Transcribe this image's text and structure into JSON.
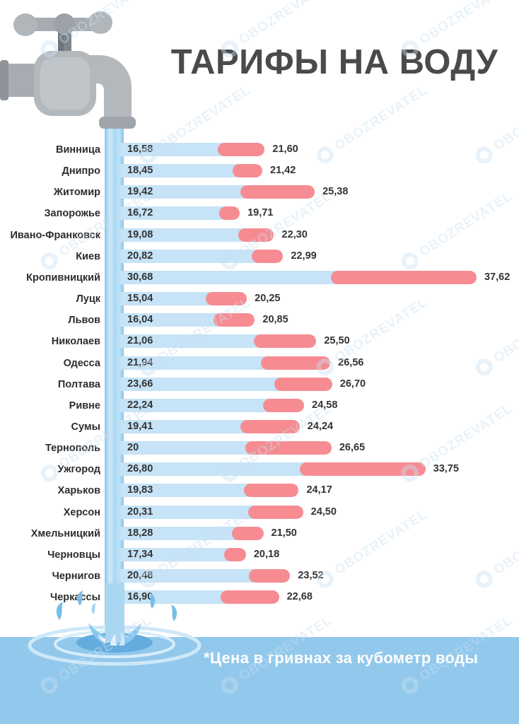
{
  "title": "ТАРИФЫ НА ВОДУ",
  "footnote": "*Цена в гривнах за кубометр воды",
  "watermark_text": "OBOZREVATEL",
  "colors": {
    "title_text": "#4a4a4a",
    "bar_blue": "#c6e3f7",
    "bar_pink": "#f68c92",
    "stream_blue": "#a9d7f2",
    "footer_band": "#92c8eb",
    "footnote_text": "#ffffff",
    "value_text": "#333333"
  },
  "chart_data": {
    "type": "bar",
    "orientation": "horizontal",
    "title": "ТАРИФЫ НА ВОДУ",
    "note": "*Цена в гривнах за кубометр воды",
    "legend": false,
    "grid": false,
    "categories": [
      "Винница",
      "Днипро",
      "Житомир",
      "Запорожье",
      "Ивано-Франковск",
      "Киев",
      "Кропивницкий",
      "Луцк",
      "Львов",
      "Николаев",
      "Одесса",
      "Полтава",
      "Ривне",
      "Сумы",
      "Тернополь",
      "Ужгород",
      "Харьков",
      "Херсон",
      "Хмельницкий",
      "Черновцы",
      "Чернигов",
      "Черкассы"
    ],
    "series": [
      {
        "name": "tariff_start_blue",
        "values": [
          16.58,
          18.45,
          19.42,
          16.72,
          19.08,
          20.82,
          30.68,
          15.04,
          16.04,
          21.06,
          21.94,
          23.66,
          22.24,
          19.41,
          20,
          26.8,
          19.83,
          20.31,
          18.28,
          17.34,
          20.48,
          16.9
        ]
      },
      {
        "name": "tariff_new_pink",
        "values": [
          21.6,
          21.42,
          25.38,
          19.71,
          22.3,
          22.99,
          37.62,
          20.25,
          20.85,
          25.5,
          26.56,
          26.7,
          24.58,
          24.24,
          26.65,
          33.75,
          24.17,
          24.5,
          21.5,
          20.18,
          23.52,
          22.68
        ]
      }
    ],
    "display_labels": [
      [
        "16,58",
        "21,60"
      ],
      [
        "18,45",
        "21,42"
      ],
      [
        "19,42",
        "25,38"
      ],
      [
        "16,72",
        "19,71"
      ],
      [
        "19,08",
        "22,30"
      ],
      [
        "20,82",
        "22,99"
      ],
      [
        "30,68",
        "37,62"
      ],
      [
        "15,04",
        "20,25"
      ],
      [
        "16,04",
        "20,85"
      ],
      [
        "21,06",
        "25,50"
      ],
      [
        "21,94",
        "26,56"
      ],
      [
        "23,66",
        "26,70"
      ],
      [
        "22,24",
        "24,58"
      ],
      [
        "19,41",
        "24,24"
      ],
      [
        "20",
        "26,65"
      ],
      [
        "26,80",
        "33,75"
      ],
      [
        "19,83",
        "24,17"
      ],
      [
        "20,31",
        "24,50"
      ],
      [
        "18,28",
        "21,50"
      ],
      [
        "17,34",
        "20,18"
      ],
      [
        "20,48",
        "23,52"
      ],
      [
        "16,90",
        "22,68"
      ]
    ]
  }
}
